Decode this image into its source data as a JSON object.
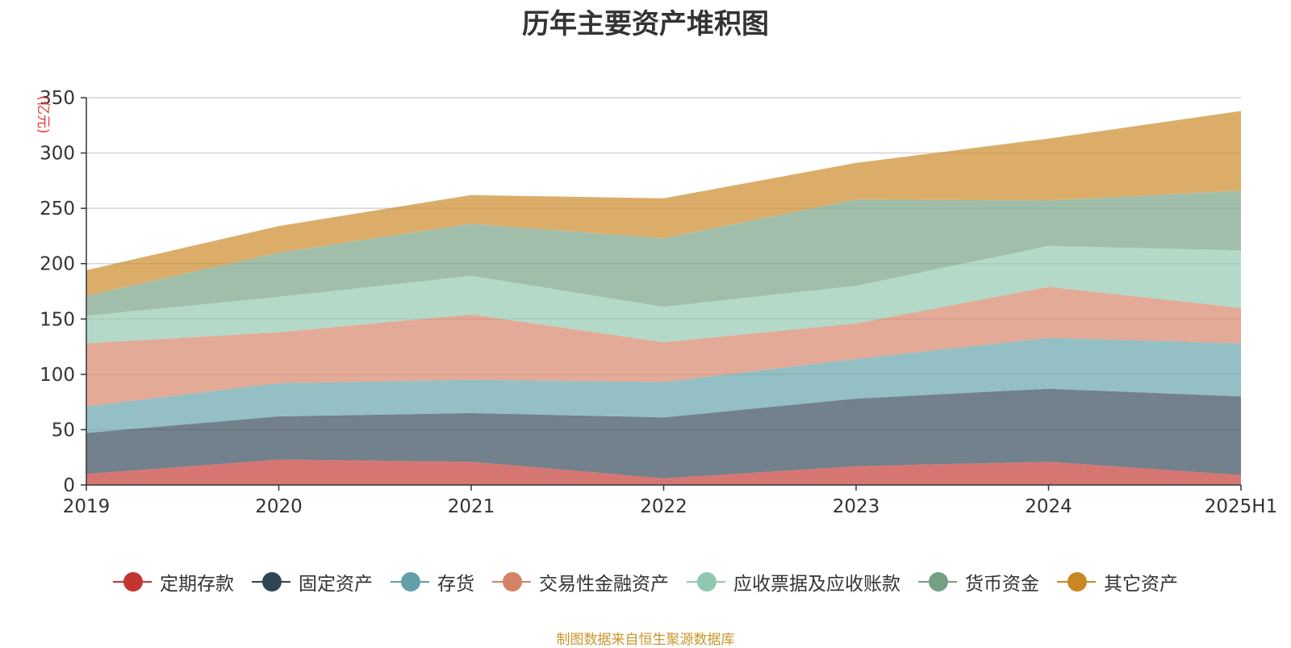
{
  "chart_data": {
    "type": "area",
    "stacked": true,
    "title": "历年主要资产堆积图",
    "ylabel": "(亿元)",
    "ylim": [
      0,
      350
    ],
    "yticks": [
      0,
      50,
      100,
      150,
      200,
      250,
      300,
      350
    ],
    "grid": true,
    "legend_position": "bottom",
    "categories": [
      "2019",
      "2020",
      "2021",
      "2022",
      "2023",
      "2024",
      "2025H1"
    ],
    "series": [
      {
        "name": "定期存款",
        "color": "#c23531",
        "values": [
          10,
          23,
          21,
          6,
          17,
          21,
          9
        ]
      },
      {
        "name": "固定资产",
        "color": "#2f4554",
        "values": [
          37,
          39,
          44,
          55,
          61,
          66,
          71
        ]
      },
      {
        "name": "存货",
        "color": "#61a0a8",
        "values": [
          24,
          30,
          30,
          32,
          36,
          46,
          48
        ]
      },
      {
        "name": "交易性金融资产",
        "color": "#d48265",
        "values": [
          57,
          46,
          59,
          36,
          32,
          46,
          32
        ]
      },
      {
        "name": "应收票据及应收账款",
        "color": "#91c7ae",
        "values": [
          25,
          32,
          35,
          32,
          34,
          37,
          52
        ]
      },
      {
        "name": "货币资金",
        "color": "#749f83",
        "values": [
          18,
          40,
          47,
          62,
          78,
          41,
          54
        ]
      },
      {
        "name": "其它资产",
        "color": "#ca8622",
        "values": [
          23,
          24,
          26,
          36,
          33,
          56,
          72
        ]
      }
    ]
  },
  "footer": {
    "source": "制图数据来自恒生聚源数据库"
  }
}
